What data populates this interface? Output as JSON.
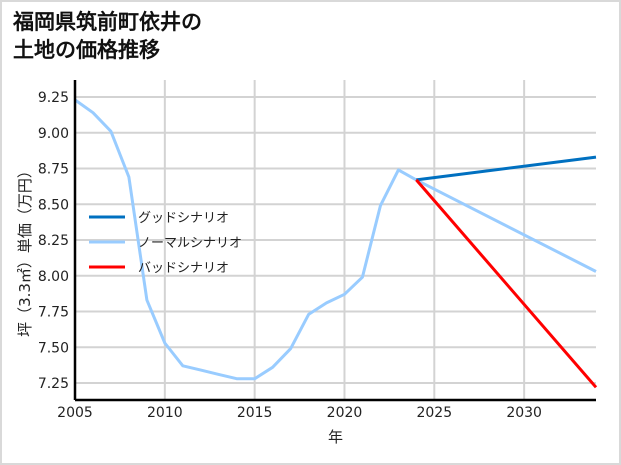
{
  "title_line1": "福岡県筑前町依井の",
  "title_line2": "土地の価格推移",
  "chart_data": {
    "type": "line",
    "title": "福岡県筑前町依井の土地の価格推移",
    "xlabel": "年",
    "ylabel": "坪（3.3㎡）単価（万円）",
    "xlim": [
      2005,
      2034
    ],
    "ylim": [
      7.13,
      9.3
    ],
    "x_ticks": [
      2005,
      2010,
      2015,
      2020,
      2025,
      2030
    ],
    "y_ticks": [
      7.25,
      7.5,
      7.75,
      8.0,
      8.25,
      8.5,
      8.75,
      9.0,
      9.25
    ],
    "y_tick_labels": [
      "7.25",
      "7.50",
      "7.75",
      "8.00",
      "8.25",
      "8.50",
      "8.75",
      "9.00",
      "9.25"
    ],
    "grid": true,
    "legend_position": "center-left",
    "series": [
      {
        "name": "グッドシナリオ",
        "color": "#0070c0",
        "x": [
          2024,
          2034
        ],
        "values": [
          8.67,
          8.83
        ]
      },
      {
        "name": "ノーマルシナリオ",
        "color": "#99ccff",
        "x": [
          2005,
          2006,
          2007,
          2008,
          2009,
          2010,
          2011,
          2012,
          2013,
          2014,
          2015,
          2016,
          2017,
          2018,
          2019,
          2020,
          2021,
          2022,
          2023,
          2024,
          2034
        ],
        "values": [
          9.23,
          9.14,
          9.01,
          8.69,
          7.83,
          7.53,
          7.37,
          7.34,
          7.31,
          7.28,
          7.28,
          7.36,
          7.49,
          7.73,
          7.81,
          7.87,
          7.99,
          8.49,
          8.74,
          8.67,
          8.03
        ]
      },
      {
        "name": "バッドシナリオ",
        "color": "#ff0000",
        "x": [
          2024,
          2034
        ],
        "values": [
          8.67,
          7.22
        ]
      }
    ]
  }
}
